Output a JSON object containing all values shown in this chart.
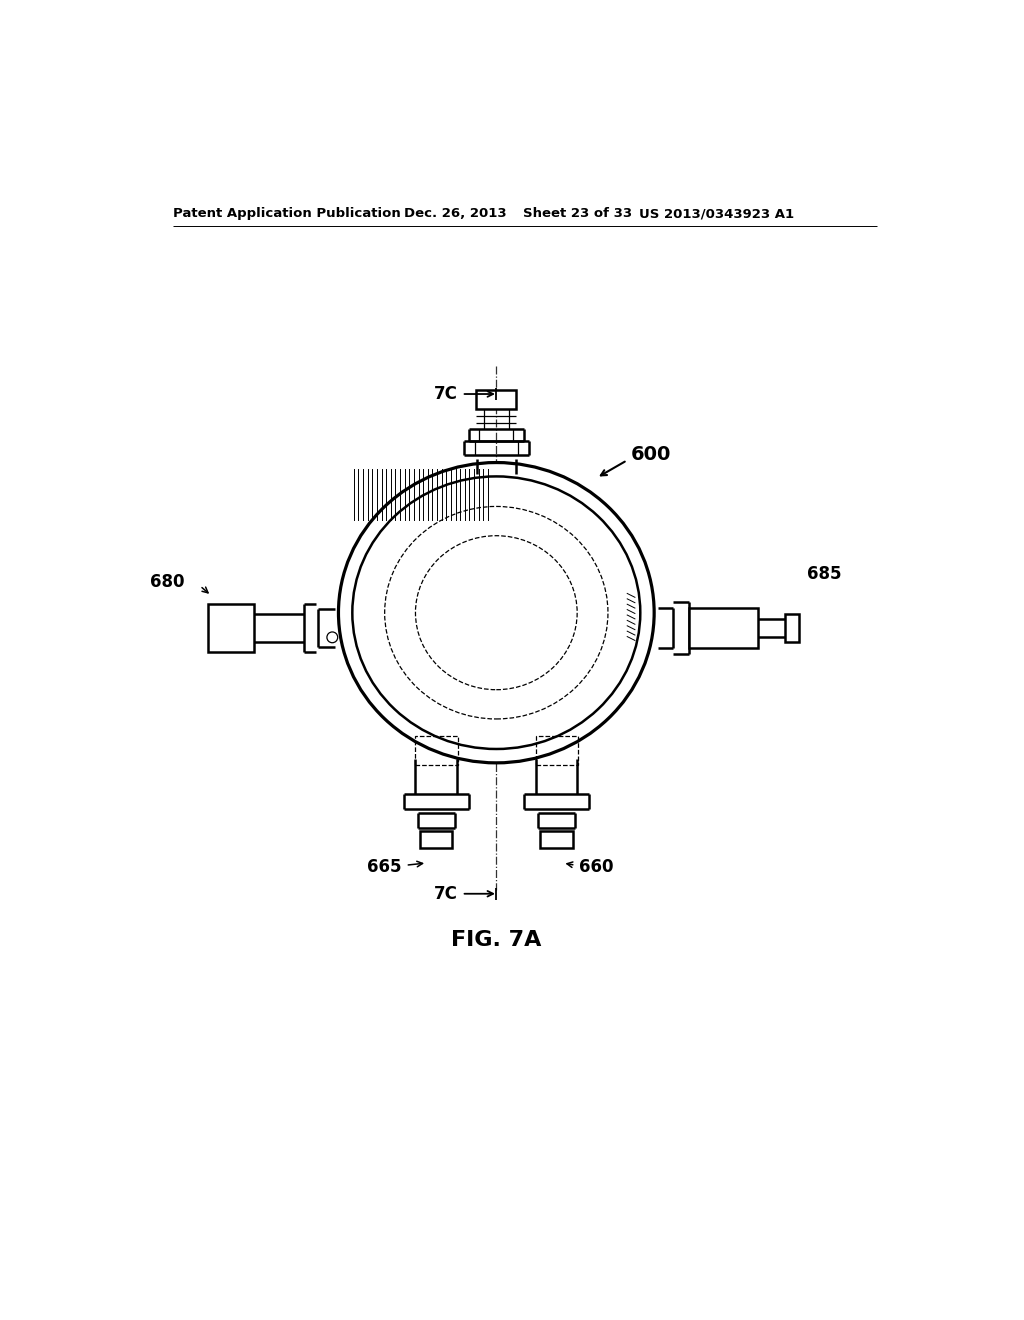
{
  "bg_color": "#ffffff",
  "header_text": "Patent Application Publication",
  "header_date": "Dec. 26, 2013",
  "header_sheet": "Sheet 23 of 33",
  "header_patent": "US 2013/0343923 A1",
  "fig_label": "FIG. 7A",
  "label_600": "600",
  "label_680": "680",
  "label_685": "685",
  "label_665": "665",
  "label_660": "660",
  "label_7C_top": "7C",
  "label_7C_bot": "7C",
  "line_color": "#000000",
  "lw_main": 1.8,
  "lw_thin": 0.9,
  "lw_dashed": 0.9
}
